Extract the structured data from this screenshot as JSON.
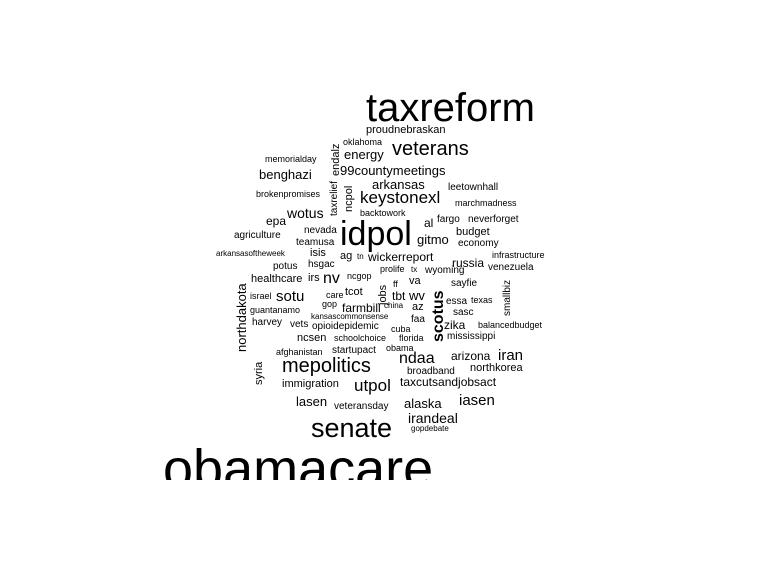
{
  "words": [
    "taxreform",
    "proudnebraskan",
    "oklahoma",
    "endalz",
    "energy",
    "veterans",
    "memorialday",
    "benghazi",
    "99countymeetings",
    "taxrelief",
    "arkansas",
    "leetownhall",
    "ncpol",
    "brokenpromises",
    "keystonexl",
    "marchmadness",
    "wotus",
    "backtowork",
    "epa",
    "fargo",
    "neverforget",
    "idpol",
    "al",
    "agriculture",
    "nevada",
    "budget",
    "teamusa",
    "gitmo",
    "economy",
    "arkansasoftheweek",
    "isis",
    "ag",
    "tn",
    "wickerreport",
    "infrastructure",
    "potus",
    "hsgac",
    "prolife",
    "russia",
    "venezuela",
    "northdakota",
    "healthcare",
    "irs",
    "nv",
    "tx",
    "wyoming",
    "ncgop",
    "ff",
    "va",
    "sayfie",
    "israel",
    "sotu",
    "tcot",
    "tbt",
    "wv",
    "jobs",
    "care",
    "essa",
    "texas",
    "smallbiz",
    "gop",
    "farmbill",
    "az",
    "guantanamo",
    "china",
    "sasc",
    "scotus",
    "kansascommonsense",
    "faa",
    "harvey",
    "vets",
    "opioidepidemic",
    "zika",
    "balancedbudget",
    "cuba",
    "ncsen",
    "schoolchoice",
    "florida",
    "mississippi",
    "mepolitics",
    "obama",
    "afghanistan",
    "startupact",
    "syria",
    "ndaa",
    "arizona",
    "iran",
    "northkorea",
    "broadband",
    "immigration",
    "utpol",
    "taxcutsandjobsact",
    "lasen",
    "iasen",
    "veteransday",
    "alaska",
    "irandeal",
    "senate",
    "gopdebate",
    "obamacare"
  ]
}
